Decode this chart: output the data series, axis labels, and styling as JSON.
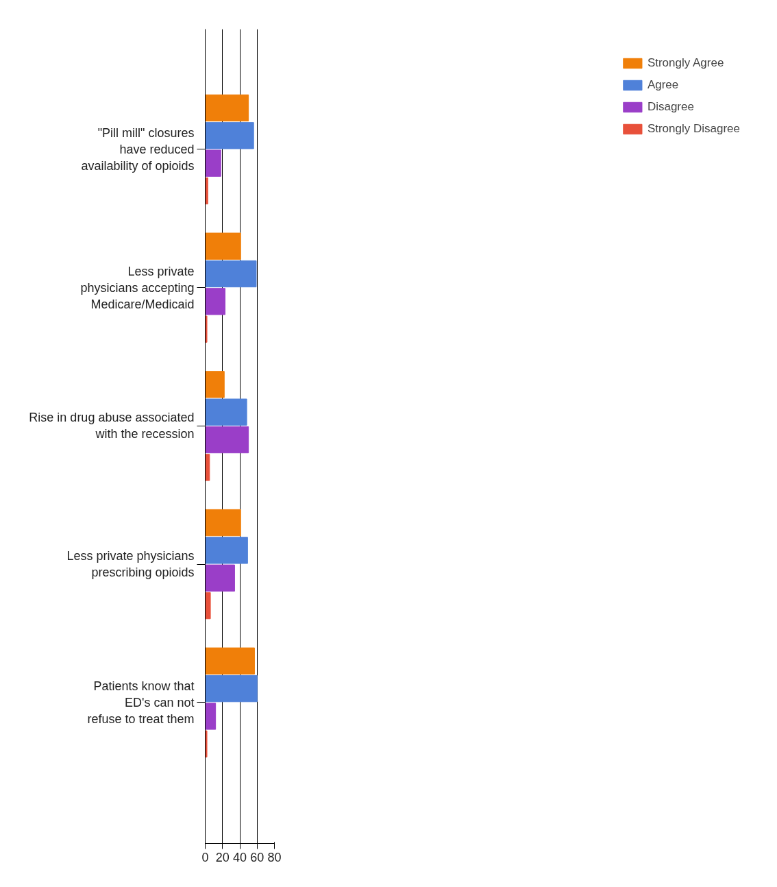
{
  "chart_data": {
    "type": "bar",
    "orientation": "horizontal",
    "categories": [
      "\"Pill mill\" closures\nhave reduced\navailability of opioids",
      "Less private\nphysicians accepting\nMedicare/Medicaid",
      "Rise in drug abuse associated\nwith the recession",
      "Less private physicians\nprescribing opioids",
      "Patients know that\nED's can not\nrefuse to treat them"
    ],
    "series": [
      {
        "name": "Strongly Agree",
        "color": "#f07f09",
        "values": [
          50,
          41,
          22,
          41,
          57
        ]
      },
      {
        "name": "Agree",
        "color": "#4f81d9",
        "values": [
          56,
          59,
          48,
          49,
          60
        ]
      },
      {
        "name": "Disagree",
        "color": "#9a3ec8",
        "values": [
          18,
          23,
          50,
          34,
          12
        ]
      },
      {
        "name": "Strongly Disagree",
        "color": "#e8503a",
        "values": [
          3,
          2,
          5,
          6,
          2
        ]
      }
    ],
    "xlim": [
      0,
      80
    ],
    "xticks": [
      0,
      20,
      40,
      60,
      80
    ],
    "grid": "x",
    "legend": "right"
  }
}
